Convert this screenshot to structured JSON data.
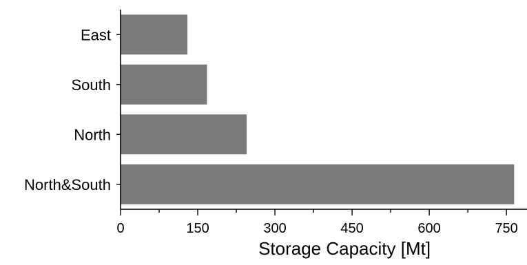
{
  "chart_data": {
    "type": "bar",
    "orientation": "horizontal",
    "categories": [
      "East",
      "South",
      "North",
      "North&South"
    ],
    "values": [
      130,
      168,
      245,
      765
    ],
    "title": "",
    "xlabel": "Storage Capacity [Mt]",
    "ylabel": "",
    "xlim": [
      0,
      790
    ],
    "xticks": [
      0,
      150,
      300,
      450,
      600,
      750
    ],
    "minor_xticks": [
      75,
      225,
      375,
      525,
      675
    ],
    "grid": false,
    "legend": "none",
    "bar_color": "#7a7a7a"
  }
}
